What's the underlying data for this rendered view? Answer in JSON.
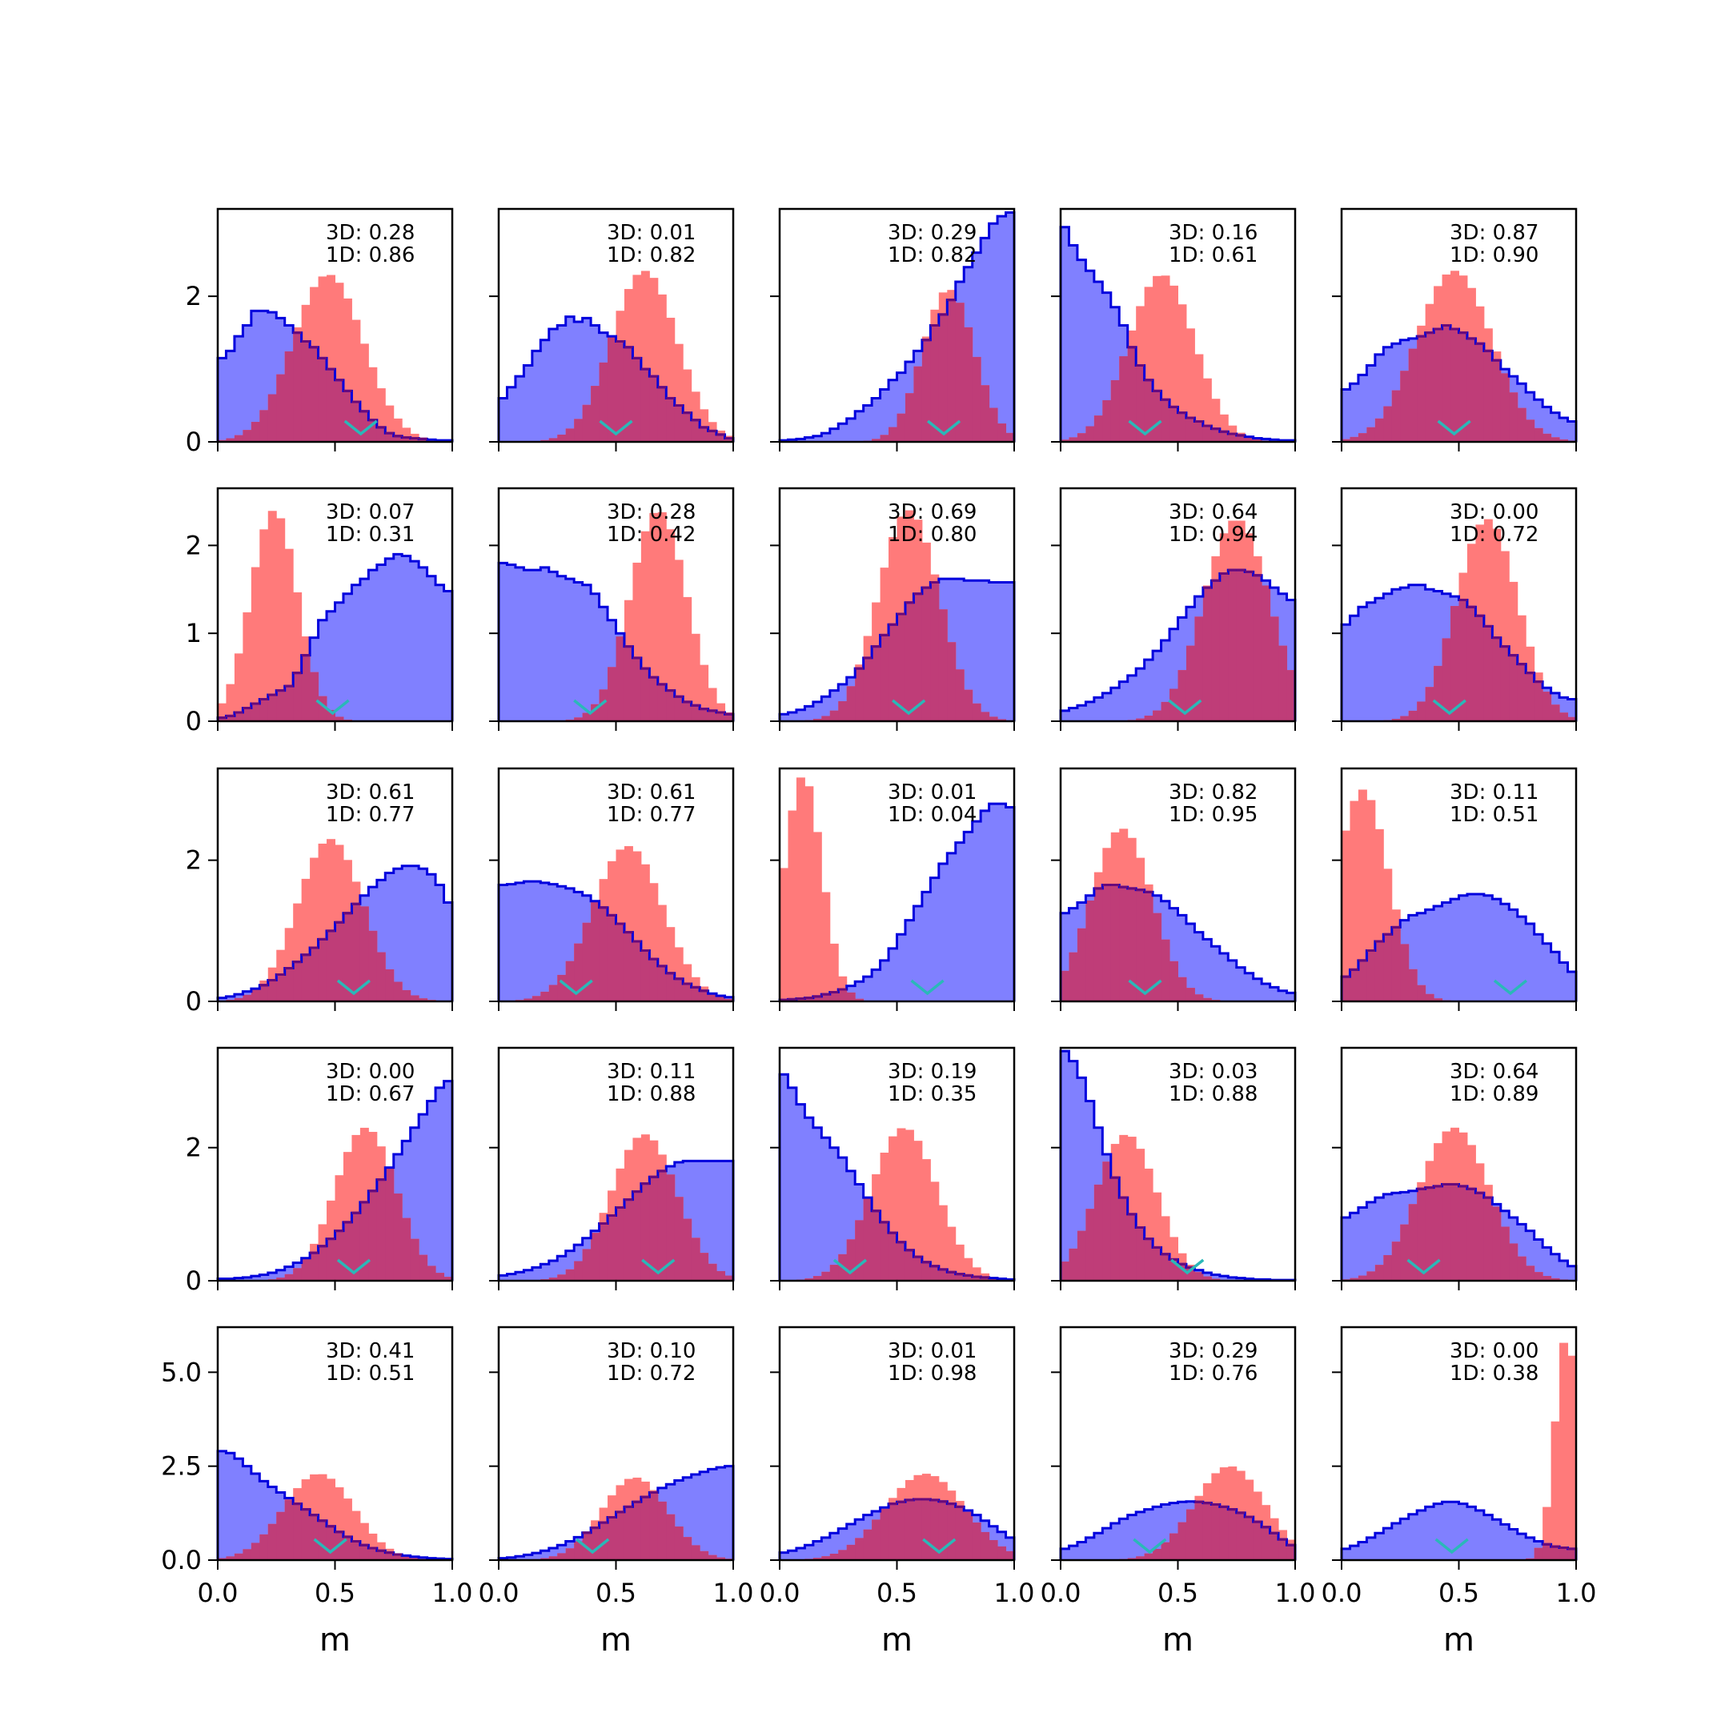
{
  "chart_data": {
    "type": "histogram-grid",
    "rows": 5,
    "cols": 5,
    "x_range": [
      0,
      1
    ],
    "x_ticks": [
      "0.0",
      "0.5",
      "1.0"
    ],
    "xlabel": "m",
    "series_colors": {
      "red_fill": "#ff7a7a",
      "blue_fill": "#8080ff",
      "blue_edge": "#0000dd",
      "overlap_edge": "#6a0a7a",
      "marker": "#2ab8b8"
    },
    "row_axes": [
      {
        "ymax": 3.2,
        "ticks": [
          {
            "value": 0,
            "label": "0"
          },
          {
            "value": 2,
            "label": "2"
          }
        ]
      },
      {
        "ymax": 2.65,
        "ticks": [
          {
            "value": 0,
            "label": "0"
          },
          {
            "value": 1,
            "label": "1"
          },
          {
            "value": 2,
            "label": "2"
          }
        ]
      },
      {
        "ymax": 3.3,
        "ticks": [
          {
            "value": 0,
            "label": "0"
          },
          {
            "value": 2,
            "label": "2"
          }
        ]
      },
      {
        "ymax": 3.5,
        "ticks": [
          {
            "value": 0,
            "label": "0"
          },
          {
            "value": 2,
            "label": "2"
          }
        ]
      },
      {
        "ymax": 6.2,
        "ticks": [
          {
            "value": 0,
            "label": "0.0"
          },
          {
            "value": 2.5,
            "label": "2.5"
          },
          {
            "value": 5.0,
            "label": "5.0"
          }
        ]
      }
    ],
    "panels": [
      {
        "label_3d": "3D: 0.28",
        "label_1d": "1D: 0.86",
        "marker": 0.61,
        "red": {
          "mu": 0.47,
          "sd": 0.15,
          "peak": 2.3
        },
        "blue": [
          1.15,
          1.25,
          1.45,
          1.6,
          1.8,
          1.8,
          1.78,
          1.7,
          1.6,
          1.5,
          1.38,
          1.3,
          1.15,
          1.0,
          0.85,
          0.7,
          0.55,
          0.42,
          0.3,
          0.2,
          0.12,
          0.08,
          0.06,
          0.05,
          0.04,
          0.03,
          0.02,
          0.02
        ]
      },
      {
        "label_3d": "3D: 0.01",
        "label_1d": "1D: 0.82",
        "marker": 0.5,
        "red": {
          "mu": 0.62,
          "sd": 0.14,
          "peak": 2.35
        },
        "blue": [
          0.6,
          0.75,
          0.9,
          1.05,
          1.25,
          1.4,
          1.55,
          1.6,
          1.72,
          1.65,
          1.7,
          1.6,
          1.5,
          1.45,
          1.38,
          1.3,
          1.15,
          1.0,
          0.9,
          0.75,
          0.6,
          0.5,
          0.4,
          0.3,
          0.2,
          0.15,
          0.1,
          0.05
        ]
      },
      {
        "label_3d": "3D: 0.29",
        "label_1d": "1D: 0.82",
        "marker": 0.7,
        "red": {
          "mu": 0.72,
          "sd": 0.11,
          "peak": 2.1
        },
        "blue": [
          0.02,
          0.03,
          0.04,
          0.06,
          0.08,
          0.12,
          0.18,
          0.25,
          0.32,
          0.42,
          0.5,
          0.6,
          0.72,
          0.85,
          0.95,
          1.1,
          1.25,
          1.4,
          1.6,
          1.75,
          1.95,
          2.2,
          2.4,
          2.6,
          2.8,
          3.0,
          3.1,
          3.15
        ]
      },
      {
        "label_3d": "3D: 0.16",
        "label_1d": "1D: 0.61",
        "marker": 0.36,
        "red": {
          "mu": 0.43,
          "sd": 0.14,
          "peak": 2.3
        },
        "blue": [
          2.95,
          2.7,
          2.5,
          2.35,
          2.2,
          2.05,
          1.85,
          1.6,
          1.3,
          1.05,
          0.85,
          0.7,
          0.58,
          0.48,
          0.4,
          0.33,
          0.28,
          0.22,
          0.18,
          0.14,
          0.11,
          0.09,
          0.07,
          0.05,
          0.04,
          0.03,
          0.02,
          0.02
        ]
      },
      {
        "label_3d": "3D: 0.87",
        "label_1d": "1D: 0.90",
        "marker": 0.48,
        "red": {
          "mu": 0.48,
          "sd": 0.16,
          "peak": 2.35
        },
        "blue": [
          0.72,
          0.8,
          0.92,
          1.05,
          1.2,
          1.3,
          1.35,
          1.4,
          1.42,
          1.45,
          1.5,
          1.55,
          1.6,
          1.55,
          1.5,
          1.42,
          1.35,
          1.25,
          1.12,
          1.0,
          0.9,
          0.8,
          0.68,
          0.58,
          0.48,
          0.4,
          0.33,
          0.28
        ]
      },
      {
        "label_3d": "3D: 0.07",
        "label_1d": "1D: 0.31",
        "marker": 0.49,
        "red": {
          "mu": 0.24,
          "sd": 0.1,
          "peak": 2.4
        },
        "blue": [
          0.04,
          0.06,
          0.1,
          0.15,
          0.2,
          0.25,
          0.3,
          0.35,
          0.4,
          0.55,
          0.75,
          0.95,
          1.15,
          1.25,
          1.35,
          1.45,
          1.55,
          1.62,
          1.72,
          1.78,
          1.85,
          1.9,
          1.88,
          1.82,
          1.75,
          1.65,
          1.55,
          1.48
        ]
      },
      {
        "label_3d": "3D: 0.28",
        "label_1d": "1D: 0.42",
        "marker": 0.39,
        "red": {
          "mu": 0.68,
          "sd": 0.12,
          "peak": 2.4
        },
        "blue": [
          1.8,
          1.78,
          1.75,
          1.72,
          1.72,
          1.75,
          1.7,
          1.65,
          1.62,
          1.58,
          1.55,
          1.45,
          1.3,
          1.15,
          1.0,
          0.85,
          0.72,
          0.6,
          0.5,
          0.42,
          0.35,
          0.28,
          0.22,
          0.18,
          0.14,
          0.12,
          0.1,
          0.08
        ]
      },
      {
        "label_3d": "3D: 0.69",
        "label_1d": "1D: 0.80",
        "marker": 0.55,
        "red": {
          "mu": 0.55,
          "sd": 0.13,
          "peak": 2.4
        },
        "blue": [
          0.08,
          0.1,
          0.13,
          0.17,
          0.22,
          0.28,
          0.35,
          0.42,
          0.5,
          0.6,
          0.72,
          0.85,
          0.98,
          1.1,
          1.22,
          1.35,
          1.45,
          1.52,
          1.58,
          1.62,
          1.62,
          1.62,
          1.6,
          1.6,
          1.6,
          1.58,
          1.58,
          1.58
        ]
      },
      {
        "label_3d": "3D: 0.64",
        "label_1d": "1D: 0.94",
        "marker": 0.53,
        "red": {
          "mu": 0.75,
          "sd": 0.14,
          "peak": 2.3
        },
        "blue": [
          0.12,
          0.15,
          0.18,
          0.22,
          0.27,
          0.32,
          0.38,
          0.45,
          0.52,
          0.6,
          0.7,
          0.8,
          0.92,
          1.05,
          1.18,
          1.3,
          1.42,
          1.52,
          1.6,
          1.68,
          1.72,
          1.72,
          1.7,
          1.66,
          1.6,
          1.52,
          1.45,
          1.38
        ]
      },
      {
        "label_3d": "3D: 0.00",
        "label_1d": "1D: 0.72",
        "marker": 0.46,
        "red": {
          "mu": 0.62,
          "sd": 0.13,
          "peak": 2.3
        },
        "blue": [
          1.1,
          1.2,
          1.3,
          1.35,
          1.4,
          1.45,
          1.5,
          1.52,
          1.55,
          1.55,
          1.5,
          1.48,
          1.45,
          1.42,
          1.38,
          1.3,
          1.2,
          1.08,
          0.95,
          0.85,
          0.75,
          0.65,
          0.55,
          0.45,
          0.38,
          0.32,
          0.27,
          0.25
        ]
      },
      {
        "label_3d": "3D: 0.61",
        "label_1d": "1D: 0.77",
        "marker": 0.58,
        "red": {
          "mu": 0.48,
          "sd": 0.14,
          "peak": 2.3
        },
        "blue": [
          0.05,
          0.07,
          0.1,
          0.14,
          0.18,
          0.23,
          0.3,
          0.38,
          0.47,
          0.56,
          0.66,
          0.76,
          0.88,
          1.0,
          1.12,
          1.25,
          1.38,
          1.5,
          1.62,
          1.72,
          1.82,
          1.88,
          1.92,
          1.92,
          1.88,
          1.8,
          1.65,
          1.4
        ]
      },
      {
        "label_3d": "3D: 0.61",
        "label_1d": "1D: 0.77",
        "marker": 0.33,
        "red": {
          "mu": 0.55,
          "sd": 0.15,
          "peak": 2.2
        },
        "blue": [
          1.65,
          1.66,
          1.68,
          1.7,
          1.7,
          1.68,
          1.66,
          1.63,
          1.6,
          1.55,
          1.5,
          1.42,
          1.33,
          1.22,
          1.1,
          0.98,
          0.85,
          0.72,
          0.6,
          0.5,
          0.4,
          0.32,
          0.25,
          0.2,
          0.15,
          0.11,
          0.08,
          0.06
        ]
      },
      {
        "label_3d": "3D: 0.01",
        "label_1d": "1D: 0.04",
        "marker": 0.63,
        "red": {
          "mu": 0.1,
          "sd": 0.08,
          "peak": 3.2
        },
        "blue": [
          0.02,
          0.03,
          0.04,
          0.05,
          0.07,
          0.1,
          0.13,
          0.17,
          0.22,
          0.28,
          0.35,
          0.45,
          0.58,
          0.75,
          0.95,
          1.15,
          1.35,
          1.55,
          1.75,
          1.95,
          2.1,
          2.25,
          2.4,
          2.55,
          2.7,
          2.8,
          2.8,
          2.75
        ]
      },
      {
        "label_3d": "3D: 0.82",
        "label_1d": "1D: 0.95",
        "marker": 0.36,
        "red": {
          "mu": 0.26,
          "sd": 0.13,
          "peak": 2.45
        },
        "blue": [
          1.25,
          1.32,
          1.4,
          1.5,
          1.6,
          1.65,
          1.65,
          1.62,
          1.6,
          1.58,
          1.55,
          1.5,
          1.42,
          1.32,
          1.22,
          1.1,
          0.98,
          0.88,
          0.78,
          0.68,
          0.58,
          0.48,
          0.4,
          0.32,
          0.25,
          0.2,
          0.15,
          0.12
        ]
      },
      {
        "label_3d": "3D: 0.11",
        "label_1d": "1D: 0.51",
        "marker": 0.72,
        "red": {
          "mu": 0.09,
          "sd": 0.11,
          "peak": 3.0
        },
        "blue": [
          0.35,
          0.45,
          0.58,
          0.72,
          0.85,
          0.95,
          1.05,
          1.15,
          1.22,
          1.25,
          1.3,
          1.35,
          1.4,
          1.45,
          1.5,
          1.52,
          1.52,
          1.5,
          1.45,
          1.38,
          1.3,
          1.2,
          1.1,
          0.95,
          0.82,
          0.7,
          0.55,
          0.42
        ]
      },
      {
        "label_3d": "3D: 0.00",
        "label_1d": "1D: 0.67",
        "marker": 0.58,
        "red": {
          "mu": 0.63,
          "sd": 0.13,
          "peak": 2.3
        },
        "blue": [
          0.03,
          0.03,
          0.04,
          0.05,
          0.07,
          0.09,
          0.12,
          0.16,
          0.21,
          0.27,
          0.34,
          0.42,
          0.52,
          0.63,
          0.75,
          0.88,
          1.02,
          1.18,
          1.35,
          1.52,
          1.7,
          1.9,
          2.1,
          2.3,
          2.5,
          2.7,
          2.9,
          3.0
        ]
      },
      {
        "label_3d": "3D: 0.11",
        "label_1d": "1D: 0.88",
        "marker": 0.68,
        "red": {
          "mu": 0.62,
          "sd": 0.14,
          "peak": 2.2
        },
        "blue": [
          0.08,
          0.1,
          0.13,
          0.16,
          0.2,
          0.25,
          0.3,
          0.37,
          0.45,
          0.54,
          0.64,
          0.75,
          0.86,
          0.98,
          1.1,
          1.22,
          1.34,
          1.46,
          1.56,
          1.65,
          1.72,
          1.78,
          1.8,
          1.8,
          1.8,
          1.8,
          1.8,
          1.8
        ]
      },
      {
        "label_3d": "3D: 0.19",
        "label_1d": "1D: 0.35",
        "marker": 0.3,
        "red": {
          "mu": 0.53,
          "sd": 0.14,
          "peak": 2.3
        },
        "blue": [
          3.1,
          2.9,
          2.65,
          2.45,
          2.3,
          2.15,
          2.0,
          1.85,
          1.65,
          1.45,
          1.25,
          1.05,
          0.88,
          0.72,
          0.58,
          0.46,
          0.36,
          0.28,
          0.22,
          0.17,
          0.13,
          0.1,
          0.08,
          0.06,
          0.05,
          0.04,
          0.03,
          0.02
        ]
      },
      {
        "label_3d": "3D: 0.03",
        "label_1d": "1D: 0.88",
        "marker": 0.54,
        "red": {
          "mu": 0.28,
          "sd": 0.13,
          "peak": 2.2
        },
        "blue": [
          3.45,
          3.3,
          3.05,
          2.7,
          2.3,
          1.9,
          1.55,
          1.25,
          1.0,
          0.8,
          0.63,
          0.5,
          0.4,
          0.32,
          0.25,
          0.2,
          0.16,
          0.12,
          0.09,
          0.07,
          0.05,
          0.04,
          0.03,
          0.02,
          0.02,
          0.01,
          0.01,
          0.01
        ]
      },
      {
        "label_3d": "3D: 0.64",
        "label_1d": "1D: 0.89",
        "marker": 0.35,
        "red": {
          "mu": 0.48,
          "sd": 0.15,
          "peak": 2.3
        },
        "blue": [
          0.95,
          1.02,
          1.1,
          1.18,
          1.25,
          1.3,
          1.32,
          1.33,
          1.35,
          1.38,
          1.4,
          1.42,
          1.45,
          1.45,
          1.42,
          1.38,
          1.32,
          1.25,
          1.15,
          1.05,
          0.95,
          0.85,
          0.75,
          0.62,
          0.5,
          0.4,
          0.3,
          0.22
        ]
      },
      {
        "label_3d": "3D: 0.41",
        "label_1d": "1D: 0.51",
        "marker": 0.48,
        "red": {
          "mu": 0.43,
          "sd": 0.15,
          "peak": 2.3
        },
        "blue": [
          2.9,
          2.85,
          2.7,
          2.5,
          2.3,
          2.1,
          1.95,
          1.8,
          1.65,
          1.5,
          1.35,
          1.2,
          1.05,
          0.9,
          0.75,
          0.62,
          0.5,
          0.4,
          0.32,
          0.25,
          0.2,
          0.15,
          0.12,
          0.09,
          0.07,
          0.05,
          0.04,
          0.03
        ]
      },
      {
        "label_3d": "3D: 0.10",
        "label_1d": "1D: 0.72",
        "marker": 0.4,
        "red": {
          "mu": 0.58,
          "sd": 0.14,
          "peak": 2.2
        },
        "blue": [
          0.05,
          0.07,
          0.1,
          0.14,
          0.19,
          0.25,
          0.32,
          0.4,
          0.5,
          0.61,
          0.73,
          0.86,
          1.0,
          1.14,
          1.28,
          1.42,
          1.55,
          1.68,
          1.8,
          1.92,
          2.02,
          2.12,
          2.2,
          2.28,
          2.35,
          2.42,
          2.47,
          2.5
        ]
      },
      {
        "label_3d": "3D: 0.01",
        "label_1d": "1D: 0.98",
        "marker": 0.68,
        "red": {
          "mu": 0.62,
          "sd": 0.17,
          "peak": 2.3
        },
        "blue": [
          0.2,
          0.25,
          0.32,
          0.4,
          0.5,
          0.6,
          0.72,
          0.84,
          0.96,
          1.08,
          1.2,
          1.3,
          1.4,
          1.5,
          1.55,
          1.6,
          1.62,
          1.62,
          1.6,
          1.56,
          1.5,
          1.42,
          1.32,
          1.2,
          1.05,
          0.9,
          0.75,
          0.6
        ]
      },
      {
        "label_3d": "3D: 0.29",
        "label_1d": "1D: 0.76",
        "marker": 0.38,
        "red": {
          "mu": 0.72,
          "sd": 0.15,
          "peak": 2.5
        },
        "blue": [
          0.3,
          0.38,
          0.48,
          0.6,
          0.72,
          0.85,
          0.98,
          1.1,
          1.2,
          1.28,
          1.35,
          1.42,
          1.48,
          1.52,
          1.55,
          1.56,
          1.55,
          1.52,
          1.48,
          1.42,
          1.35,
          1.26,
          1.15,
          1.02,
          0.88,
          0.72,
          0.55,
          0.4
        ]
      },
      {
        "label_3d": "3D: 0.00",
        "label_1d": "1D: 0.38",
        "marker": 0.47,
        "red": {
          "mu": 0.96,
          "sd": 0.05,
          "peak": 6.0
        },
        "blue": [
          0.3,
          0.38,
          0.48,
          0.6,
          0.72,
          0.85,
          0.98,
          1.1,
          1.22,
          1.32,
          1.42,
          1.5,
          1.55,
          1.55,
          1.5,
          1.42,
          1.32,
          1.2,
          1.08,
          0.95,
          0.82,
          0.7,
          0.6,
          0.5,
          0.42,
          0.36,
          0.33,
          0.3
        ]
      }
    ]
  }
}
